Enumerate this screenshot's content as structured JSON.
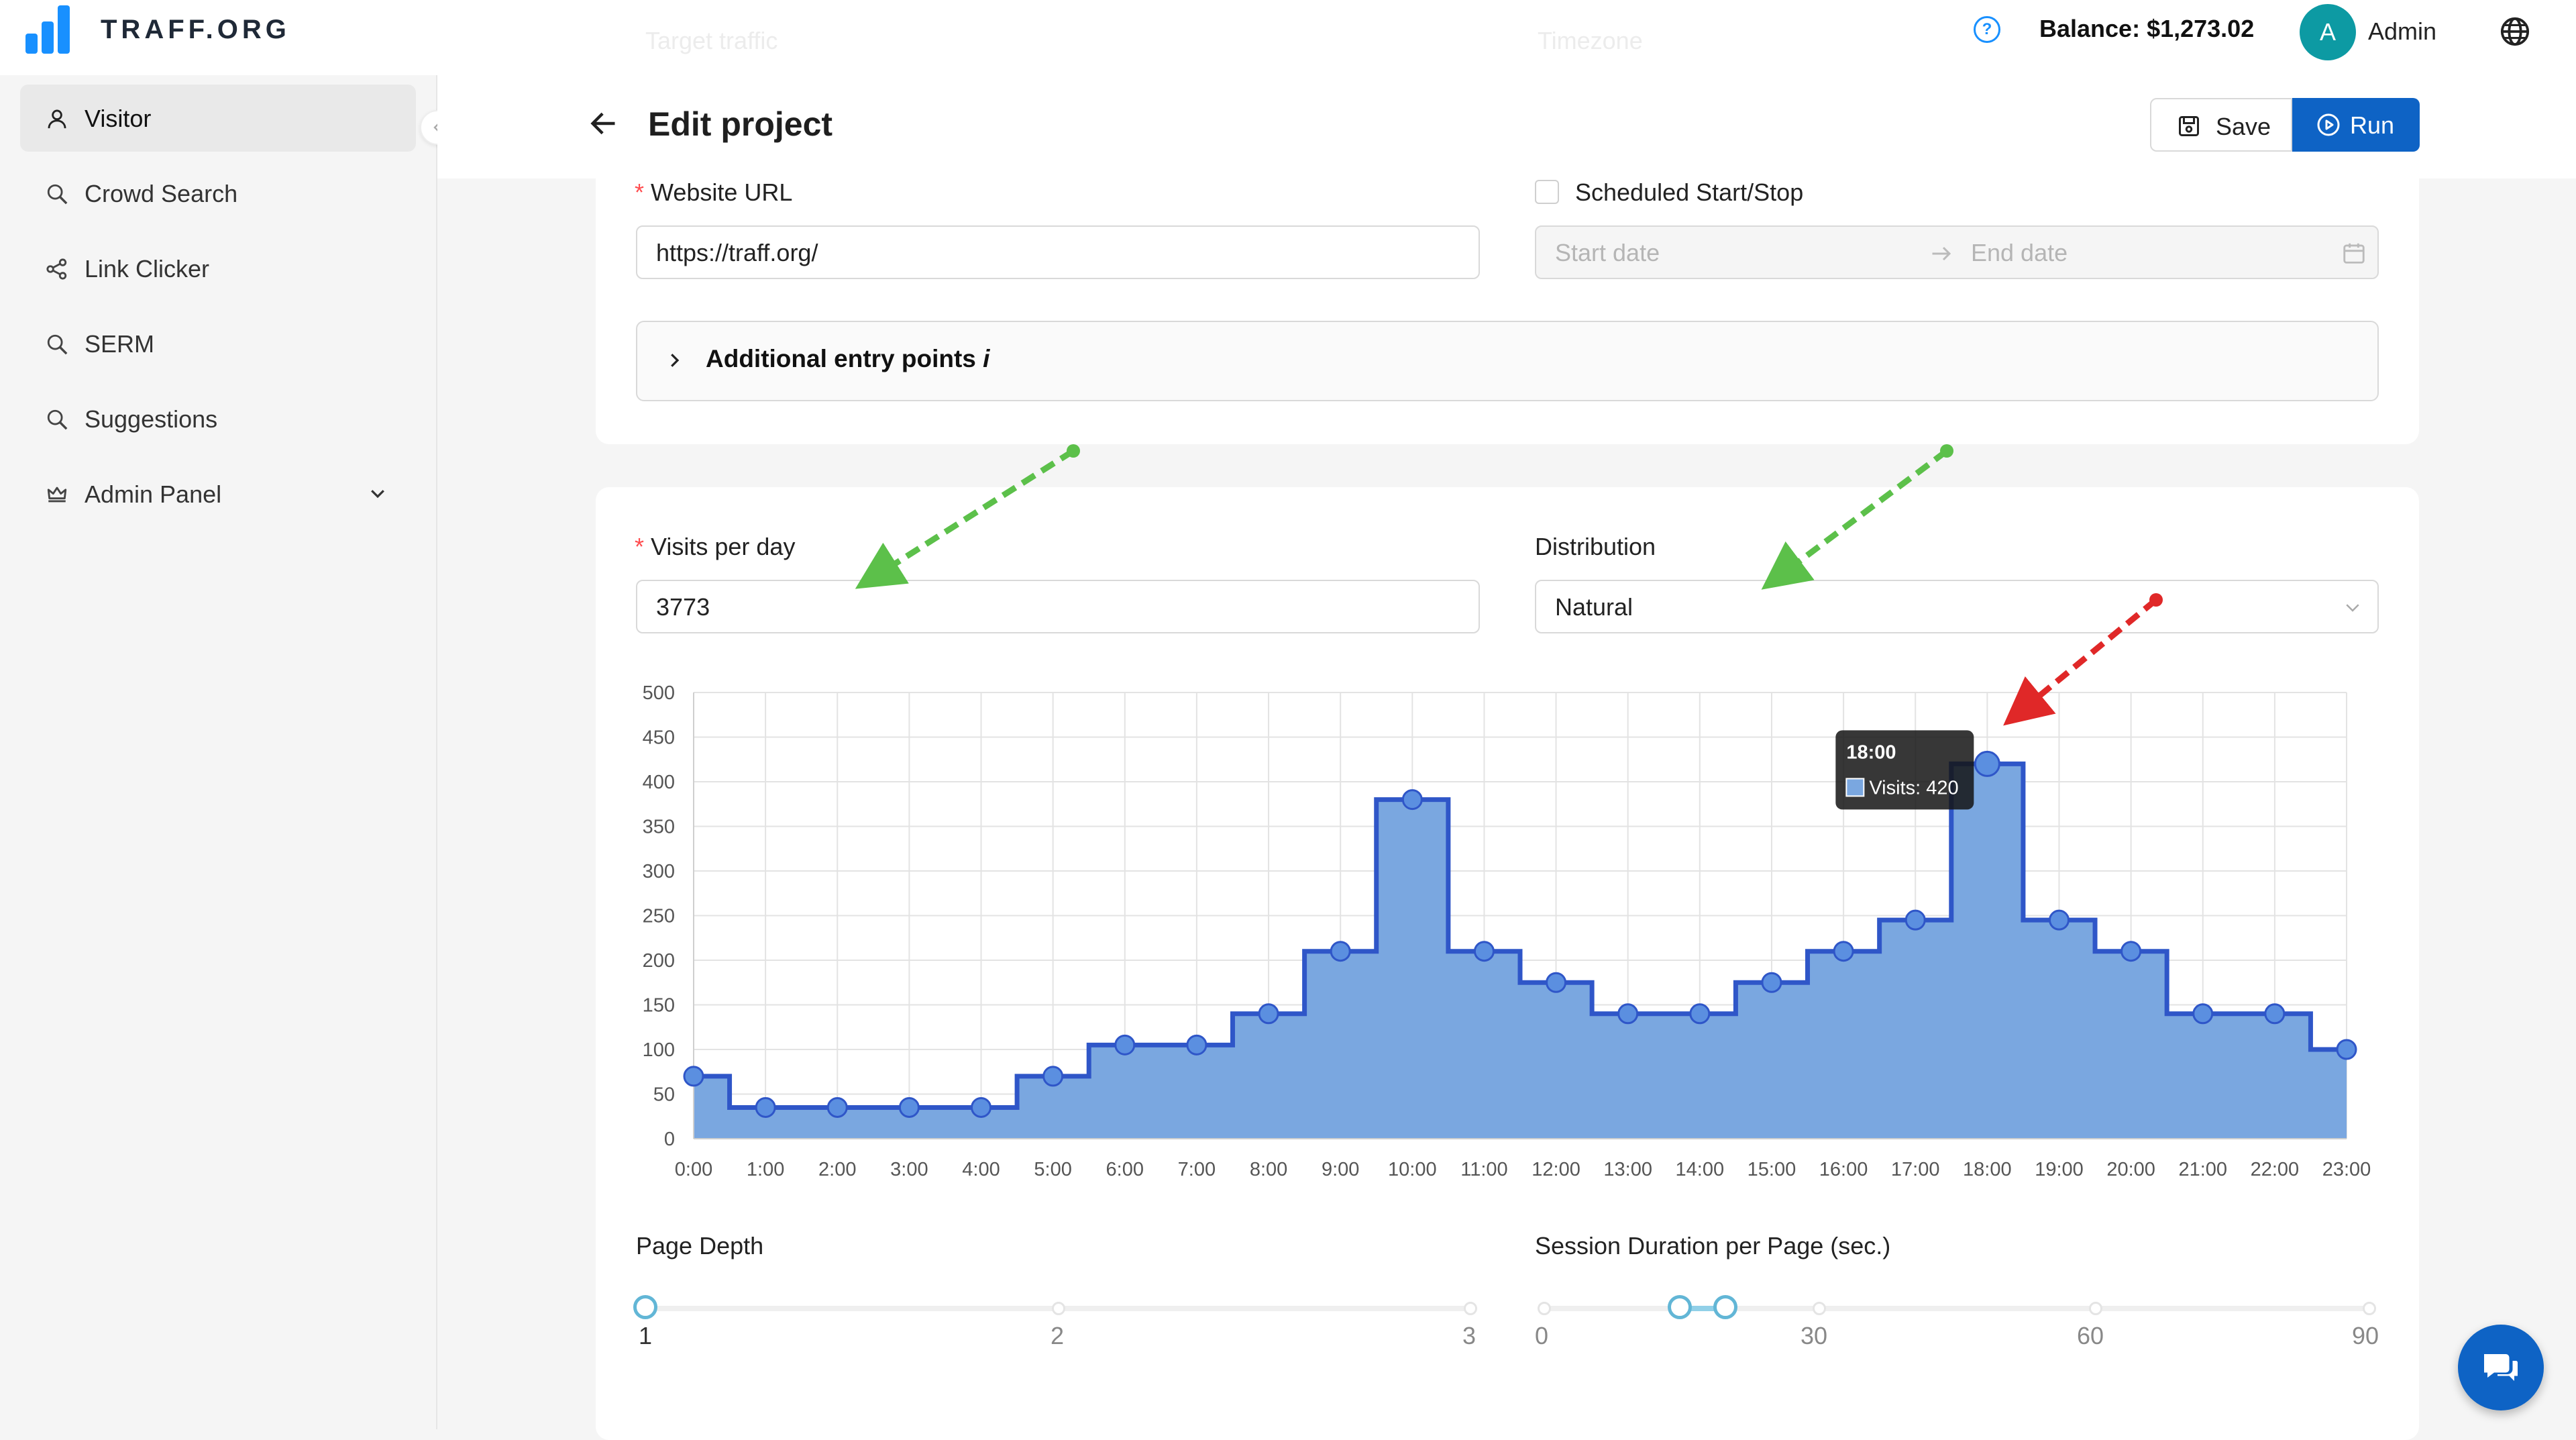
{
  "brand": {
    "name": "TRAFF.ORG",
    "ghost_left": "Target traffic",
    "ghost_right": "Timezone"
  },
  "header": {
    "balance": "Balance: $1,273.02",
    "avatar_initial": "A",
    "user_name": "Admin"
  },
  "sidebar": {
    "items": [
      {
        "label": "Visitor",
        "icon": "user-icon"
      },
      {
        "label": "Crowd Search",
        "icon": "search-icon"
      },
      {
        "label": "Link Clicker",
        "icon": "share-icon"
      },
      {
        "label": "SERM",
        "icon": "search-icon"
      },
      {
        "label": "Suggestions",
        "icon": "search-icon"
      },
      {
        "label": "Admin Panel",
        "icon": "crown-icon"
      }
    ]
  },
  "page": {
    "title": "Edit project",
    "save_label": "Save",
    "run_label": "Run"
  },
  "form": {
    "website_url_label": "Website URL",
    "website_url_value": "https://traff.org/",
    "scheduled_label": "Scheduled Start/Stop",
    "start_placeholder": "Start date",
    "end_placeholder": "End date",
    "entry_points_label": "Additional entry points",
    "entry_points_info": "i",
    "visits_label": "Visits per day",
    "visits_value": "3773",
    "distribution_label": "Distribution",
    "distribution_value": "Natural",
    "page_depth_label": "Page Depth",
    "page_depth_marks": [
      "1",
      "2",
      "3"
    ],
    "page_depth_value": 1,
    "session_label": "Session Duration per Page (sec.)",
    "session_marks": [
      "0",
      "30",
      "60",
      "90"
    ],
    "session_range": [
      15,
      20
    ]
  },
  "chart_data": {
    "type": "area",
    "categories": [
      "0:00",
      "1:00",
      "2:00",
      "3:00",
      "4:00",
      "5:00",
      "6:00",
      "7:00",
      "8:00",
      "9:00",
      "10:00",
      "11:00",
      "12:00",
      "13:00",
      "14:00",
      "15:00",
      "16:00",
      "17:00",
      "18:00",
      "19:00",
      "20:00",
      "21:00",
      "22:00",
      "23:00"
    ],
    "series": [
      {
        "name": "Visits",
        "values": [
          70,
          35,
          35,
          35,
          35,
          70,
          105,
          105,
          140,
          210,
          380,
          210,
          175,
          140,
          140,
          175,
          210,
          245,
          420,
          245,
          210,
          140,
          140,
          100
        ]
      }
    ],
    "ylim": [
      0,
      500
    ],
    "yticks": [
      0,
      50,
      100,
      150,
      200,
      250,
      300,
      350,
      400,
      450,
      500
    ],
    "step": true,
    "grid": true,
    "fill_color": "#7aa7e0",
    "line_color": "#2f56c8",
    "tooltip": {
      "title": "18:00",
      "label": "Visits: 420"
    }
  }
}
